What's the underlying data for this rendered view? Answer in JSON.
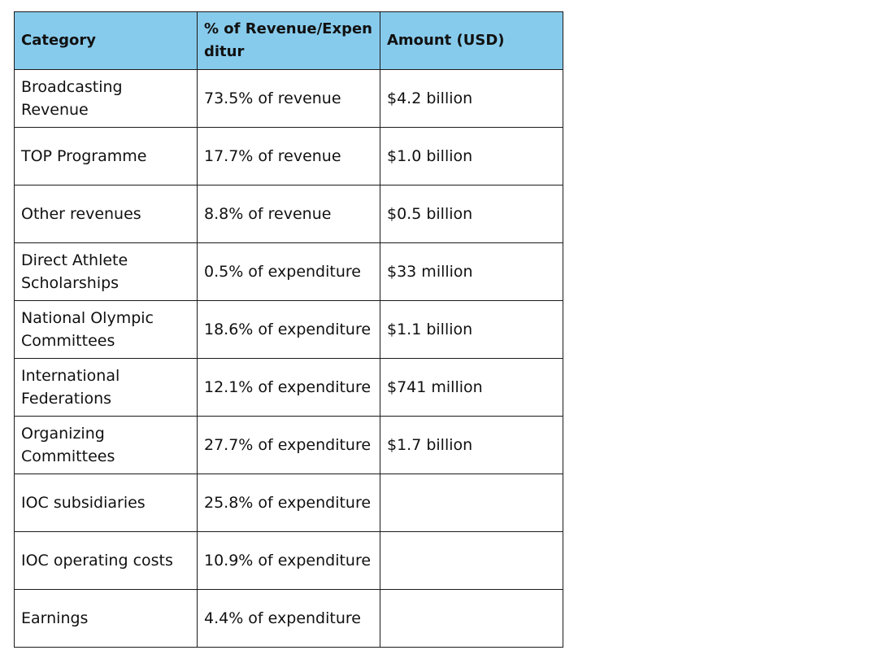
{
  "table": {
    "headers": [
      "Category",
      "% of Revenue/Expenditur",
      "Amount (USD)"
    ],
    "rows": [
      [
        "Broadcasting Revenue",
        "73.5% of revenue",
        "$4.2 billion"
      ],
      [
        "TOP Programme",
        "17.7% of revenue",
        "$1.0 billion"
      ],
      [
        "Other revenues",
        "8.8% of revenue",
        "$0.5 billion"
      ],
      [
        "Direct Athlete Scholarships",
        "0.5% of expenditure",
        "$33 million"
      ],
      [
        "National Olympic Committees",
        "18.6% of expenditure",
        "$1.1 billion"
      ],
      [
        "International Federations",
        "12.1% of expenditure",
        "$741 million"
      ],
      [
        "Organizing Committees",
        "27.7% of expenditure",
        "$1.7 billion"
      ],
      [
        "IOC subsidiaries",
        "25.8% of expenditure",
        ""
      ],
      [
        "IOC operating costs",
        "10.9% of expenditure",
        ""
      ],
      [
        "Earnings",
        "4.4% of expenditure",
        ""
      ]
    ]
  }
}
